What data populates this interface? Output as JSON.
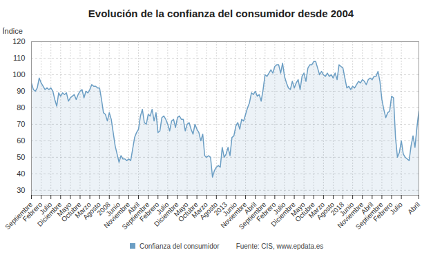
{
  "chart_data": {
    "type": "area",
    "title": "Evolución de la confianza del consumidor desde 2004",
    "y_label": "Índice",
    "source": "Fuente: CIS, www.epdata.es",
    "legend": "bottom-left",
    "grid": true,
    "ylim": [
      27,
      120
    ],
    "yticks": [
      30,
      40,
      50,
      60,
      70,
      80,
      90,
      100,
      110,
      120
    ],
    "categories": [
      "Septiembre",
      null,
      null,
      null,
      null,
      "Febrero",
      null,
      null,
      null,
      null,
      "Julio",
      null,
      null,
      null,
      null,
      "Diciembre",
      null,
      null,
      null,
      null,
      "Mayo",
      null,
      null,
      null,
      null,
      "Octubre",
      null,
      null,
      null,
      null,
      "Marzo",
      null,
      null,
      null,
      null,
      "Agosto",
      null,
      null,
      null,
      null,
      "2008",
      null,
      null,
      null,
      null,
      "Junio",
      null,
      null,
      null,
      null,
      "Noviembre",
      null,
      null,
      null,
      null,
      "Abril",
      null,
      null,
      null,
      null,
      "Septiembre",
      null,
      null,
      null,
      null,
      "Febrero",
      null,
      null,
      null,
      null,
      "Julio",
      null,
      null,
      null,
      null,
      "Diciembre",
      null,
      null,
      null,
      null,
      "Mayo",
      null,
      null,
      null,
      null,
      "Octubre",
      null,
      null,
      null,
      null,
      "Marzo",
      null,
      null,
      null,
      null,
      "Agosto",
      null,
      null,
      null,
      null,
      "2013",
      null,
      null,
      null,
      null,
      "Junio",
      null,
      null,
      null,
      null,
      "Noviembre",
      null,
      null,
      null,
      null,
      "Abril",
      null,
      null,
      null,
      null,
      "Septiembre",
      null,
      null,
      null,
      null,
      "Febrero",
      null,
      null,
      null,
      null,
      "Julio",
      null,
      null,
      null,
      null,
      "Diciembre",
      null,
      null,
      null,
      null,
      "Mayo",
      null,
      null,
      null,
      null,
      "Octubre",
      null,
      null,
      null,
      null,
      "Marzo",
      null,
      null,
      null,
      null,
      "Agosto",
      null,
      null,
      null,
      null,
      "2018",
      null,
      null,
      null,
      null,
      "Junio",
      null,
      null,
      null,
      null,
      "Noviembre",
      null,
      null,
      null,
      null,
      "Abril",
      null,
      null,
      null,
      null,
      "Septiembre",
      null,
      null,
      null,
      null,
      "Febrero",
      null,
      null,
      null,
      null,
      "Julio",
      null,
      null,
      null,
      null,
      null,
      null,
      null,
      null,
      "Abril"
    ],
    "series": [
      {
        "name": "Confianza del consumidor",
        "color": "#6b9ec4",
        "values": [
          95,
          91,
          90,
          92,
          98,
          95,
          93,
          91,
          92,
          91,
          92,
          90,
          85,
          81,
          89,
          87,
          89,
          88,
          89,
          84,
          86,
          87,
          88,
          85,
          88,
          90,
          91,
          86,
          90,
          89,
          91,
          94,
          93,
          93,
          92,
          92,
          85,
          77,
          76,
          72,
          77,
          73,
          65,
          57,
          52,
          47,
          51,
          49,
          49,
          48,
          49,
          48,
          55,
          62,
          65,
          67,
          75,
          79,
          71,
          70,
          76,
          75,
          79,
          72,
          77,
          65,
          66,
          74,
          75,
          73,
          70,
          66,
          72,
          73,
          68,
          74,
          75,
          73,
          73,
          66,
          70,
          71,
          67,
          64,
          70,
          67,
          65,
          60,
          64,
          51,
          50,
          51,
          50,
          38,
          42,
          44,
          45,
          44,
          56,
          50,
          52,
          56,
          51,
          62,
          63,
          69,
          71,
          67,
          73,
          72,
          76,
          80,
          83,
          89,
          88,
          90,
          87,
          88,
          84,
          91,
          100,
          99,
          101,
          103,
          101,
          105,
          106,
          106,
          101,
          107,
          99,
          95,
          92,
          91,
          96,
          92,
          95,
          97,
          91,
          99,
          101,
          96,
          104,
          106,
          106,
          108,
          108,
          104,
          100,
          102,
          100,
          99,
          101,
          99,
          100,
          98,
          101,
          97,
          106,
          105,
          104,
          98,
          92,
          93,
          91,
          93,
          92,
          94,
          96,
          95,
          97,
          96,
          94,
          97,
          98,
          97,
          99,
          99,
          102,
          96,
          85,
          79,
          74,
          77,
          78,
          87,
          86,
          62,
          50,
          53,
          60,
          52,
          50,
          49,
          48,
          57,
          63,
          56,
          68,
          78
        ]
      }
    ]
  }
}
